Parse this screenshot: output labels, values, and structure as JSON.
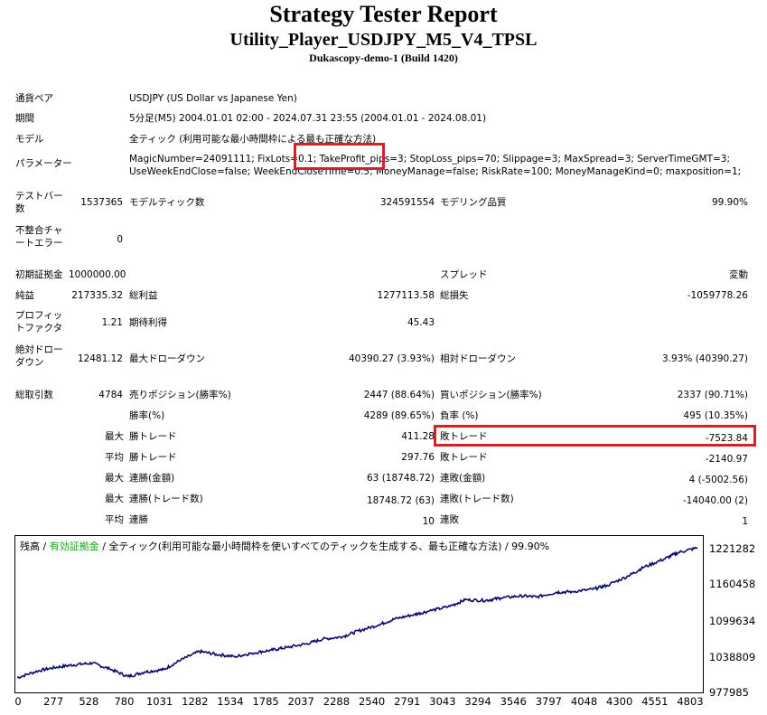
{
  "header": {
    "title": "Strategy Tester Report",
    "subtitle": "Utility_Player_USDJPY_M5_V4_TPSL",
    "server": "Dukascopy-demo-1 (Build 1420)"
  },
  "settings": {
    "symbol_label": "通貨ペア",
    "symbol_value": "USDJPY (US Dollar vs Japanese Yen)",
    "period_label": "期間",
    "period_value": "5分足(M5) 2004.01.01 02:00 - 2024.07.31 23:55 (2004.01.01 - 2024.08.01)",
    "model_label": "モデル",
    "model_value": "全ティック (利用可能な最小時間枠による最も正確な方法)",
    "params_label": "パラメーター",
    "params_line1": "MagicNumber=24091111; FixLots=0.1; TakeProfit_pips=3; StopLoss_pips=70; Slippage=3; MaxSpread=3; ServerTimeGMT=3;",
    "params_line2": "UseWeekEndClose=false; WeekEndCloseTime=0.5; MoneyManage=false; RiskRate=100; MoneyManageKind=0; maxposition=1;"
  },
  "stats": {
    "bars_label": "テストバー数",
    "bars_value": "1537365",
    "ticks_label": "モデルティック数",
    "ticks_value": "324591554",
    "quality_label": "モデリング品質",
    "quality_value": "99.90%",
    "mismatch_label": "不整合チャートエラー",
    "mismatch_value": "0",
    "deposit_label": "初期証拠金",
    "deposit_value": "1000000.00",
    "spread_label": "スプレッド",
    "spread_value": "変動",
    "net_label": "純益",
    "net_value": "217335.32",
    "gross_profit_label": "総利益",
    "gross_profit_value": "1277113.58",
    "gross_loss_label": "総損失",
    "gross_loss_value": "-1059778.26",
    "pf_label": "プロフィットファクタ",
    "pf_value": "1.21",
    "expected_label": "期待利得",
    "expected_value": "45.43",
    "abs_dd_label": "絶対ドローダウン",
    "abs_dd_value": "12481.12",
    "max_dd_label": "最大ドローダウン",
    "max_dd_value": "40390.27 (3.93%)",
    "rel_dd_label": "相対ドローダウン",
    "rel_dd_value": "3.93% (40390.27)",
    "total_trades_label": "総取引数",
    "total_trades_value": "4784",
    "short_label": "売りポジション(勝率%)",
    "short_value": "2447 (88.64%)",
    "long_label": "買いポジション(勝率%)",
    "long_value": "2337 (90.71%)",
    "win_pct_label": "勝率(%)",
    "win_pct_value": "4289 (89.65%)",
    "loss_pct_label": "負率 (%)",
    "loss_pct_value": "495 (10.35%)",
    "max_word": "最大",
    "avg_word": "平均",
    "max_win_label": "勝トレード",
    "max_win_value": "411.28",
    "max_loss_label": "敗トレード",
    "max_loss_value": "-7523.84",
    "avg_win_label": "勝トレード",
    "avg_win_value": "297.76",
    "avg_loss_label": "敗トレード",
    "avg_loss_value": "-2140.97",
    "cons_wins_amt_label": "連勝(金額)",
    "cons_wins_amt_value": "63 (18748.72)",
    "cons_loss_amt_label": "連敗(金額)",
    "cons_loss_amt_value": "4 (-5002.56)",
    "cons_wins_cnt_label": "連勝(トレード数)",
    "cons_wins_cnt_value": "18748.72 (63)",
    "cons_loss_cnt_label": "連敗(トレード数)",
    "cons_loss_cnt_value": "-14040.00 (2)",
    "avg_cons_win_label": "連勝",
    "avg_cons_win_value": "10",
    "avg_cons_loss_label": "連敗",
    "avg_cons_loss_value": "1"
  },
  "chart_data": {
    "type": "line",
    "legend_balance": "残高",
    "legend_sep1": " / ",
    "legend_equity": "有効証拠金",
    "legend_rest": " / 全ティック(利用可能な最小時間枠を使いすべてのティックを生成する、最も正確な方法) / 99.90%",
    "colors": {
      "balance": "#0a0a6e",
      "equity": "#15a21a",
      "highlight": "#d42026"
    },
    "y_ticks": [
      "1221282",
      "1160458",
      "1099634",
      "1038809",
      "977985"
    ],
    "x_ticks": [
      "0",
      "277",
      "528",
      "780",
      "1031",
      "1282",
      "1534",
      "1785",
      "2037",
      "2288",
      "2540",
      "2791",
      "3043",
      "3294",
      "3546",
      "3797",
      "4048",
      "4300",
      "4551",
      "4803"
    ],
    "ylim": [
      977985,
      1239000
    ],
    "xlim": [
      0,
      4784
    ],
    "series": [
      {
        "name": "残高",
        "x": [
          0,
          150,
          277,
          400,
          528,
          650,
          780,
          900,
          1031,
          1150,
          1282,
          1400,
          1534,
          1650,
          1785,
          1900,
          2037,
          2150,
          2288,
          2400,
          2540,
          2650,
          2791,
          2900,
          3043,
          3150,
          3294,
          3400,
          3546,
          3650,
          3797,
          3900,
          4048,
          4150,
          4300,
          4400,
          4551,
          4650,
          4784
        ],
        "values": [
          1000000,
          1012000,
          1018000,
          1022000,
          1025000,
          1015000,
          1002000,
          1010000,
          1014000,
          1030000,
          1045000,
          1040000,
          1036000,
          1042000,
          1047000,
          1052000,
          1058000,
          1066000,
          1070000,
          1080000,
          1090000,
          1100000,
          1108000,
          1114000,
          1122000,
          1133000,
          1132000,
          1136000,
          1140000,
          1138000,
          1146000,
          1147000,
          1151000,
          1158000,
          1174000,
          1188000,
          1203000,
          1214000,
          1222000
        ]
      }
    ]
  }
}
